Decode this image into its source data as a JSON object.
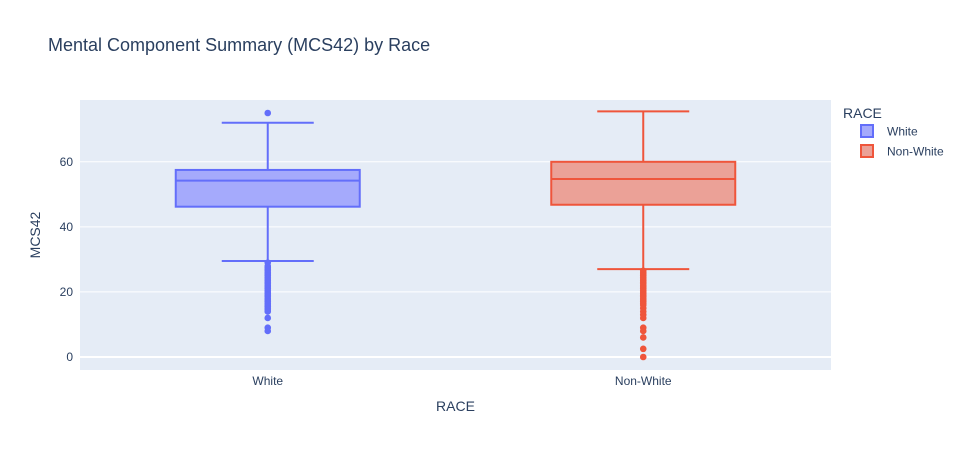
{
  "chart_data": {
    "type": "box",
    "title": "Mental Component Summary (MCS42) by Race",
    "xlabel": "RACE",
    "ylabel": "MCS42",
    "ylim": [
      -4,
      79
    ],
    "yticks": [
      0,
      20,
      40,
      60
    ],
    "grid": true,
    "legend": {
      "title": "RACE",
      "placement": "right",
      "entries": [
        "White",
        "Non-White"
      ]
    },
    "categories": [
      "White",
      "Non-White"
    ],
    "series": [
      {
        "name": "White",
        "color": "#636efa",
        "fill": "#a5aafc",
        "q1": 46.2,
        "median": 54.2,
        "q3": 57.5,
        "lowerfence": 29.5,
        "upperfence": 72,
        "outliers": [
          75,
          29,
          28,
          27.5,
          27,
          26.5,
          26,
          25.5,
          25,
          24.5,
          24,
          23.5,
          23,
          22.5,
          22,
          21.5,
          21,
          20.5,
          20,
          19.5,
          19,
          18.5,
          18,
          17.5,
          17,
          16.5,
          16,
          15.5,
          15,
          14.5,
          14,
          12,
          9,
          8
        ]
      },
      {
        "name": "Non-White",
        "color": "#ef553b",
        "fill": "#eba197",
        "q1": 46.8,
        "median": 54.7,
        "q3": 60,
        "lowerfence": 27,
        "upperfence": 75.5,
        "outliers": [
          26.5,
          26,
          25.5,
          25,
          24.5,
          24,
          23.5,
          23,
          22.5,
          22,
          21.5,
          21,
          20.5,
          20,
          19.5,
          19,
          18.5,
          18,
          17.5,
          17,
          16.5,
          16,
          15,
          14,
          13,
          12,
          9,
          8,
          6,
          2.5,
          0
        ]
      }
    ]
  }
}
